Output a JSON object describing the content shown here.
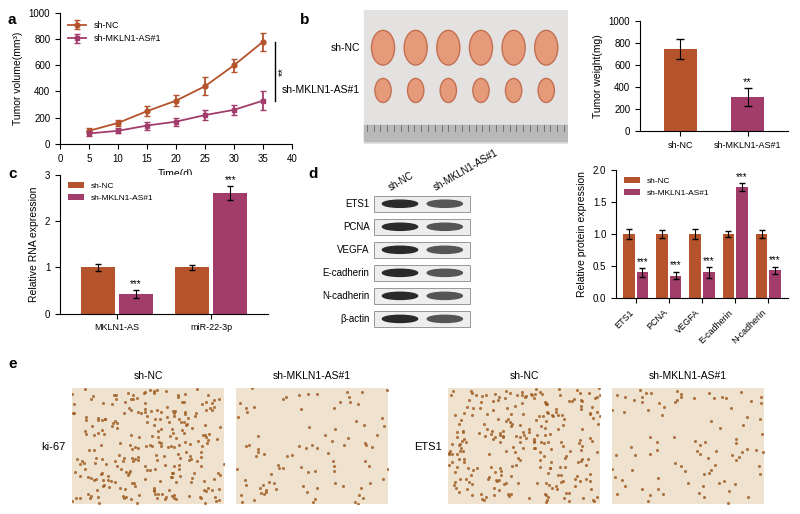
{
  "chart_data": [
    {
      "panel_label": "a",
      "type": "line",
      "x_label": "Time(d)",
      "y_label": "Tumor volume(mm³)",
      "xlim": [
        0,
        40
      ],
      "xticks": [
        0,
        5,
        10,
        15,
        20,
        25,
        30,
        35,
        40
      ],
      "ylim": [
        0,
        1000
      ],
      "yticks": [
        0,
        200,
        400,
        600,
        800,
        1000
      ],
      "legend": "upper left",
      "annotations": [
        "**"
      ],
      "x": [
        5,
        10,
        15,
        20,
        25,
        30,
        35
      ],
      "series": [
        {
          "name": "sh-NC",
          "color": "#b5532c",
          "marker": "o",
          "values": [
            100,
            160,
            250,
            330,
            440,
            600,
            780
          ],
          "errors": [
            20,
            20,
            40,
            40,
            70,
            50,
            70
          ]
        },
        {
          "name": "sh-MKLN1-AS#1",
          "color": "#a23d6b",
          "marker": "s",
          "values": [
            80,
            100,
            140,
            170,
            220,
            260,
            330
          ],
          "errors": [
            20,
            20,
            30,
            30,
            40,
            40,
            70
          ]
        }
      ]
    },
    {
      "type": "bar",
      "y_label": "Tumor weight(mg)",
      "categories": [
        "sh-NC",
        "sh-MKLN1-AS#1"
      ],
      "values": [
        740,
        310
      ],
      "errors": [
        90,
        80
      ],
      "colors": [
        "#b5532c",
        "#a23d6b"
      ],
      "annotations": [
        null,
        "**"
      ],
      "ylim": [
        0,
        1000
      ],
      "yticks": [
        0,
        200,
        400,
        600,
        800,
        1000
      ]
    },
    {
      "panel_label": "c",
      "type": "bar",
      "y_label": "Relative RNA expression",
      "categories": [
        "MKLN1-AS",
        "miR-22-3p"
      ],
      "legend": "upper left",
      "ylim": [
        0,
        3
      ],
      "yticks": [
        0,
        1,
        2,
        3
      ],
      "series": [
        {
          "name": "sh-NC",
          "color": "#b5532c",
          "values": [
            1.0,
            1.0
          ],
          "errors": [
            0.08,
            0.06
          ]
        },
        {
          "name": "sh-MKLN1-AS#1",
          "color": "#a23d6b",
          "values": [
            0.42,
            2.6
          ],
          "errors": [
            0.08,
            0.15
          ],
          "annotations": [
            "***",
            "***"
          ]
        }
      ]
    },
    {
      "type": "bar",
      "y_label": "Relative protein expression",
      "categories": [
        "ETS1",
        "PCNA",
        "VEGFA",
        "E-cadherin",
        "N-cadherin"
      ],
      "legend": "upper left",
      "ylim": [
        0.0,
        2.0
      ],
      "yticks": [
        0.0,
        0.5,
        1.0,
        1.5,
        2.0
      ],
      "series": [
        {
          "name": "sh-NC",
          "color": "#b5532c",
          "values": [
            1.0,
            1.0,
            1.0,
            1.0,
            1.0
          ],
          "errors": [
            0.08,
            0.06,
            0.08,
            0.05,
            0.06
          ]
        },
        {
          "name": "sh-MKLN1-AS#1",
          "color": "#a23d6b",
          "values": [
            0.4,
            0.35,
            0.4,
            1.73,
            0.43
          ],
          "errors": [
            0.07,
            0.06,
            0.08,
            0.06,
            0.06
          ],
          "annotations": [
            "***",
            "***",
            "***",
            "***",
            "***"
          ]
        }
      ]
    }
  ],
  "tumor_photo": {
    "panel_label": "b",
    "row_labels": [
      "sh-NC",
      "sh-MKLN1-AS#1"
    ]
  },
  "western_blot": {
    "panel_label": "d",
    "column_labels": [
      "sh-NC",
      "sh-MKLN1-AS#1"
    ],
    "row_labels": [
      "ETS1",
      "PCNA",
      "VEGFA",
      "E-cadherin",
      "N-cadherin",
      "β-actin"
    ]
  },
  "ihc": {
    "panel_label": "e",
    "groups": [
      {
        "row_label": "ki-67",
        "column_labels": [
          "sh-NC",
          "sh-MKLN1-AS#1"
        ]
      },
      {
        "row_label": "ETS1",
        "column_labels": [
          "sh-NC",
          "sh-MKLN1-AS#1"
        ]
      }
    ]
  }
}
